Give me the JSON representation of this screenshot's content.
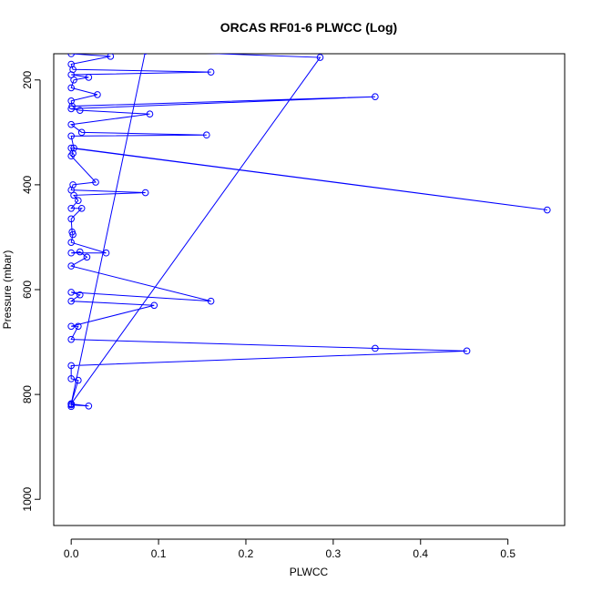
{
  "chart_data": {
    "type": "line",
    "title": "ORCAS RF01-6 PLWCC (Log)",
    "xlabel": "PLWCC",
    "ylabel": "Pressure (mbar)",
    "xlim": [
      -0.02,
      0.565
    ],
    "ylim": [
      1050,
      150
    ],
    "y_reversed": true,
    "x_ticks": [
      0.0,
      0.1,
      0.2,
      0.3,
      0.4,
      0.5
    ],
    "x_tick_labels": [
      "0.0",
      "0.1",
      "0.2",
      "0.3",
      "0.4",
      "0.5"
    ],
    "y_ticks": [
      200,
      400,
      600,
      800,
      1000
    ],
    "y_tick_labels": [
      "200",
      "400",
      "600",
      "800",
      "1000"
    ],
    "grid": false,
    "series": [
      {
        "color": "#0000ff",
        "marker": "open-circle",
        "points": [
          [
            0.0,
            150
          ],
          [
            0.045,
            155
          ],
          [
            0.0,
            170
          ],
          [
            0.002,
            180
          ],
          [
            0.16,
            185
          ],
          [
            0.0,
            190
          ],
          [
            0.02,
            195
          ],
          [
            0.003,
            200
          ],
          [
            0.0,
            215
          ],
          [
            0.03,
            228
          ],
          [
            0.0,
            240
          ],
          [
            0.001,
            250
          ],
          [
            0.348,
            232
          ],
          [
            0.0,
            255
          ],
          [
            0.01,
            258
          ],
          [
            0.09,
            265
          ],
          [
            0.0,
            285
          ],
          [
            0.012,
            300
          ],
          [
            0.155,
            305
          ],
          [
            0.0,
            307
          ],
          [
            0.003,
            330
          ],
          [
            0.545,
            448
          ],
          [
            0.0,
            330
          ],
          [
            0.002,
            340
          ],
          [
            0.0,
            345
          ],
          [
            0.028,
            395
          ],
          [
            0.002,
            400
          ],
          [
            0.0,
            410
          ],
          [
            0.085,
            415
          ],
          [
            0.003,
            420
          ],
          [
            0.008,
            430
          ],
          [
            0.0,
            445
          ],
          [
            0.012,
            445
          ],
          [
            0.0,
            465
          ],
          [
            0.001,
            490
          ],
          [
            0.002,
            495
          ],
          [
            0.0,
            510
          ],
          [
            0.04,
            530
          ],
          [
            0.0,
            530
          ],
          [
            0.01,
            528
          ],
          [
            0.018,
            538
          ],
          [
            0.0,
            555
          ],
          [
            0.16,
            622
          ],
          [
            0.0,
            605
          ],
          [
            0.01,
            610
          ],
          [
            0.0,
            622
          ],
          [
            0.095,
            630
          ],
          [
            0.0,
            670
          ],
          [
            0.008,
            670
          ],
          [
            0.0,
            695
          ],
          [
            0.348,
            712
          ],
          [
            0.453,
            717
          ],
          [
            0.0,
            745
          ],
          [
            0.0,
            770
          ],
          [
            0.008,
            773
          ],
          [
            0.0,
            818
          ],
          [
            0.02,
            822
          ],
          [
            0.0,
            820
          ],
          [
            0.0,
            823
          ],
          [
            0.0,
            818
          ],
          [
            0.085,
            145
          ],
          [
            0.285,
            157
          ],
          [
            0.0,
            818
          ]
        ]
      }
    ]
  }
}
